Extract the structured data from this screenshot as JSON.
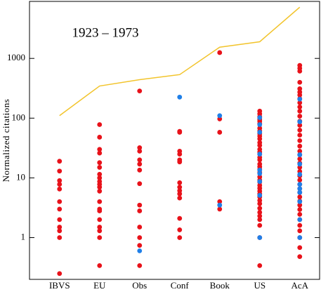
{
  "chart_data": {
    "type": "scatter",
    "annotation": "1923 – 1973",
    "y_label": "Normalized citations",
    "categories": [
      "IBVS",
      "EU",
      "Obs",
      "Conf",
      "Book",
      "US",
      "AcA"
    ],
    "ylim": [
      0.2,
      9000
    ],
    "yticks": [
      1,
      10,
      100,
      1000
    ],
    "log_y": true,
    "line": {
      "color": "#f2c42c",
      "values": [
        110,
        345,
        440,
        535,
        1540,
        1900,
        7200
      ]
    },
    "series": [
      {
        "color": "#e8121a",
        "values": [
          [
            19,
            13,
            9,
            7.8,
            6.5,
            4,
            3,
            2,
            1.5,
            1.3,
            1,
            0.25
          ],
          [
            78,
            48,
            30,
            26,
            18,
            15,
            11.5,
            10,
            8.7,
            7.8,
            7,
            6,
            4,
            3,
            2.8,
            2,
            1.5,
            1.3,
            1,
            0.34
          ],
          [
            285,
            32,
            28,
            20,
            17,
            13.5,
            8,
            3.5,
            2.8,
            1.5,
            1,
            0.74,
            0.34
          ],
          [
            60,
            58,
            28,
            25,
            20,
            18.5,
            8.3,
            7,
            6.1,
            5.4,
            4.6,
            2.1,
            1.35,
            1
          ],
          [
            1250,
            97,
            58,
            4,
            3
          ],
          [
            131,
            118,
            106,
            96,
            89,
            81,
            68,
            61,
            55,
            50,
            45,
            39,
            35,
            30,
            27,
            25,
            22,
            20,
            17,
            15.4,
            14,
            12.3,
            10.4,
            9.2,
            8.5,
            7.5,
            6.7,
            6,
            5.4,
            4.8,
            4.2,
            3.7,
            3.1,
            2.65,
            2.3,
            2,
            1.6,
            1,
            0.34
          ],
          [
            764,
            683,
            612,
            398,
            311,
            273,
            244,
            212,
            181,
            154,
            131,
            108,
            89,
            76,
            63,
            52,
            42,
            34,
            28,
            24.4,
            20.8,
            17.7,
            15,
            12.8,
            10.8,
            9.2,
            7.8,
            6.6,
            5.7,
            4.8,
            4.1,
            3.5,
            2.95,
            2.45,
            2,
            1.6,
            1.3,
            1,
            0.68,
            0.48
          ]
        ]
      },
      {
        "color": "#1f7fe8",
        "values": [
          [],
          [],
          [
            0.6
          ],
          [
            225
          ],
          [
            110,
            3.5
          ],
          [
            102,
            78,
            58,
            25,
            13.5,
            11.8,
            8.7,
            5.1,
            1
          ],
          [
            208,
            87,
            24.4,
            17,
            11.4,
            7.8,
            6.6,
            5.7,
            4,
            2,
            1
          ]
        ]
      }
    ]
  }
}
